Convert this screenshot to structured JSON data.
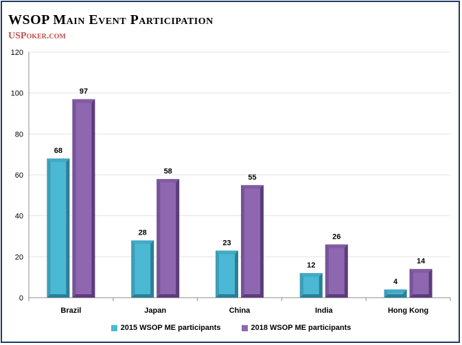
{
  "title": "WSOP Main Event Participation",
  "subtitle": "USPoker.com",
  "colors": {
    "series1": "#4bb8d4",
    "series1_dark": "#2a7f96",
    "series2": "#8e67b0",
    "series2_dark": "#5b3d7a",
    "title_accent": "#c0504d",
    "border": "#1f3864"
  },
  "chart_data": {
    "type": "bar",
    "categories": [
      "Brazil",
      "Japan",
      "China",
      "India",
      "Hong Kong"
    ],
    "series": [
      {
        "name": "2015 WSOP ME participants",
        "values": [
          68,
          28,
          23,
          12,
          4
        ]
      },
      {
        "name": "2018 WSOP ME participants",
        "values": [
          97,
          58,
          55,
          26,
          14
        ]
      }
    ],
    "title": "WSOP Main Event Participation",
    "xlabel": "",
    "ylabel": "",
    "ylim": [
      0,
      120
    ],
    "yticks": [
      0,
      20,
      40,
      60,
      80,
      100,
      120
    ],
    "grid": true,
    "legend": "bottom"
  }
}
